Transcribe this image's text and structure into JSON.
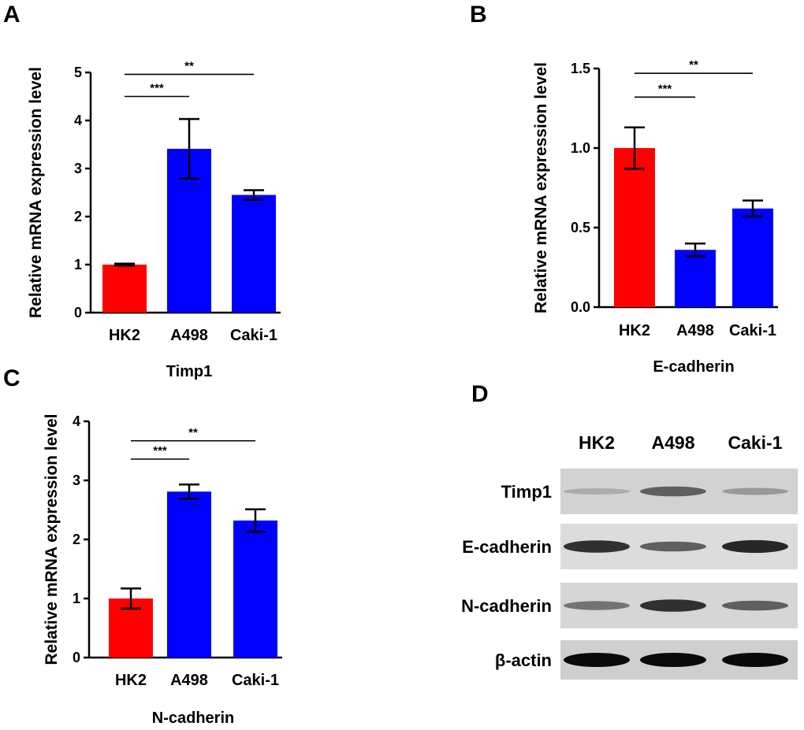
{
  "panels": {
    "A": {
      "letter": "A"
    },
    "B": {
      "letter": "B"
    },
    "C": {
      "letter": "C"
    },
    "D": {
      "letter": "D"
    }
  },
  "chart_data": [
    {
      "id": "A",
      "type": "bar",
      "title": "",
      "xlabel": "Timp1",
      "ylabel": "Relative mRNA expression level",
      "categories": [
        "HK2",
        "A498",
        "Caki-1"
      ],
      "values": [
        1.0,
        3.41,
        2.45
      ],
      "errors": [
        0.02,
        0.62,
        0.1
      ],
      "bar_colors": [
        "#ff0000",
        "#0000ff",
        "#0000ff"
      ],
      "ylim": [
        0,
        5
      ],
      "yticks": [
        "0",
        "1",
        "2",
        "3",
        "4",
        "5"
      ],
      "significance": [
        {
          "label": "***",
          "from": 0,
          "to": 1,
          "y": 4.5
        },
        {
          "label": "**",
          "from": 0,
          "to": 2,
          "y": 4.96
        }
      ]
    },
    {
      "id": "B",
      "type": "bar",
      "title": "",
      "xlabel": "E-cadherin",
      "ylabel": "Relative mRNA expression level",
      "categories": [
        "HK2",
        "A498",
        "Caki-1"
      ],
      "values": [
        1.0,
        0.36,
        0.62
      ],
      "errors": [
        0.13,
        0.04,
        0.05
      ],
      "bar_colors": [
        "#ff0000",
        "#0000ff",
        "#0000ff"
      ],
      "ylim": [
        0,
        1.5
      ],
      "yticks": [
        "0.0",
        "0.5",
        "1.0",
        "1.5"
      ],
      "significance": [
        {
          "label": "***",
          "from": 0,
          "to": 1,
          "y": 1.32
        },
        {
          "label": "**",
          "from": 0,
          "to": 2,
          "y": 1.47
        }
      ]
    },
    {
      "id": "C",
      "type": "bar",
      "title": "",
      "xlabel": "N-cadherin",
      "ylabel": "Relative mRNA expression level",
      "categories": [
        "HK2",
        "A498",
        "Caki-1"
      ],
      "values": [
        1.0,
        2.81,
        2.32
      ],
      "errors": [
        0.17,
        0.12,
        0.19
      ],
      "bar_colors": [
        "#ff0000",
        "#0000ff",
        "#0000ff"
      ],
      "ylim": [
        0,
        4
      ],
      "yticks": [
        "0",
        "1",
        "2",
        "3",
        "4"
      ],
      "significance": [
        {
          "label": "***",
          "from": 0,
          "to": 1,
          "y": 3.36
        },
        {
          "label": "**",
          "from": 0,
          "to": 2,
          "y": 3.67
        }
      ]
    }
  ],
  "western_blot": {
    "columns": [
      "HK2",
      "A498",
      "Caki-1"
    ],
    "rows": [
      {
        "label": "Timp1",
        "intensity": [
          0.15,
          0.55,
          0.25
        ],
        "background": "#d2d2d2"
      },
      {
        "label": "E-cadherin",
        "intensity": [
          0.8,
          0.55,
          0.85
        ],
        "background": "#dcdcdc"
      },
      {
        "label": "N-cadherin",
        "intensity": [
          0.45,
          0.8,
          0.55
        ],
        "background": "#d6d6d6"
      },
      {
        "label": "β-actin",
        "intensity": [
          1.0,
          1.0,
          1.0
        ],
        "background": "#cfcfcf"
      }
    ]
  }
}
